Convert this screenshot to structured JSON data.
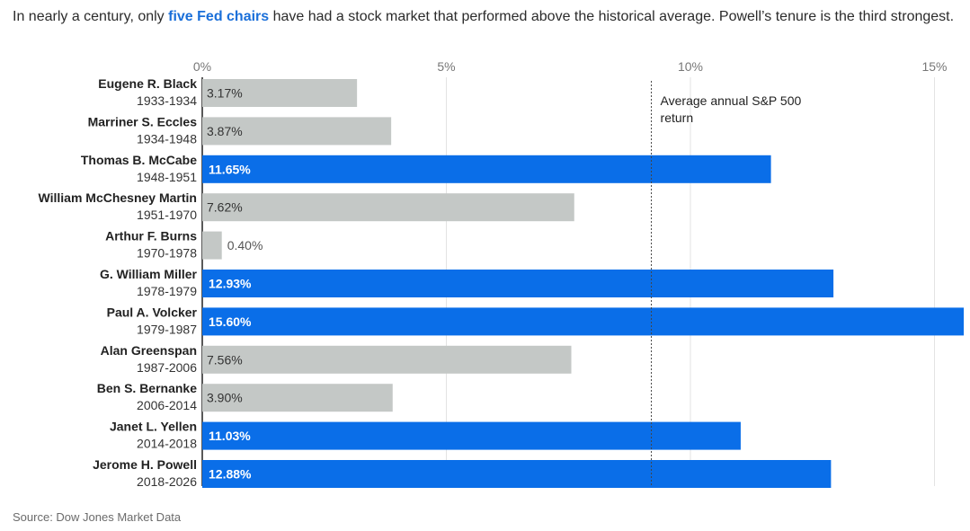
{
  "subtitle": {
    "before": "In nearly a century, only ",
    "highlight": "five Fed chairs",
    "after": " have had a stock market that performed above the historical average. Powell’s tenure is the third strongest."
  },
  "source": "Source: Dow Jones Market Data",
  "colors": {
    "above_average": "#0a6ee8",
    "below_average": "#c4c8c6",
    "highlight_text": "#1a6fd9"
  },
  "chart_data": {
    "type": "bar",
    "orientation": "horizontal",
    "xlim": [
      0,
      15.6
    ],
    "x_ticks": [
      0,
      5,
      10,
      15
    ],
    "x_tick_labels": [
      "0%",
      "5%",
      "10%",
      "15%"
    ],
    "reference_line": {
      "value": 9.2,
      "label_lines": [
        "Average annual S&P 500",
        "return"
      ],
      "style": "dotted"
    },
    "categories": [
      {
        "name": "Eugene R. Black",
        "years": "1933-1934"
      },
      {
        "name": "Marriner S. Eccles",
        "years": "1934-1948"
      },
      {
        "name": "Thomas B. McCabe",
        "years": "1948-1951"
      },
      {
        "name": "William McChesney Martin",
        "years": "1951-1970"
      },
      {
        "name": "Arthur F. Burns",
        "years": "1970-1978"
      },
      {
        "name": "G. William Miller",
        "years": "1978-1979"
      },
      {
        "name": "Paul A. Volcker",
        "years": "1979-1987"
      },
      {
        "name": "Alan Greenspan",
        "years": "1987-2006"
      },
      {
        "name": "Ben S. Bernanke",
        "years": "2006-2014"
      },
      {
        "name": "Janet L. Yellen",
        "years": "2014-2018"
      },
      {
        "name": "Jerome H. Powell",
        "years": "2018-2026"
      }
    ],
    "values": [
      3.17,
      3.87,
      11.65,
      7.62,
      0.4,
      12.93,
      15.6,
      7.56,
      3.9,
      11.03,
      12.88
    ],
    "value_labels": [
      "3.17%",
      "3.87%",
      "11.65%",
      "7.62%",
      "0.40%",
      "12.93%",
      "15.60%",
      "7.56%",
      "3.90%",
      "11.03%",
      "12.88%"
    ],
    "above_average": [
      false,
      false,
      true,
      false,
      false,
      true,
      true,
      false,
      false,
      true,
      true
    ],
    "grid": "vertical",
    "legend": "none"
  }
}
